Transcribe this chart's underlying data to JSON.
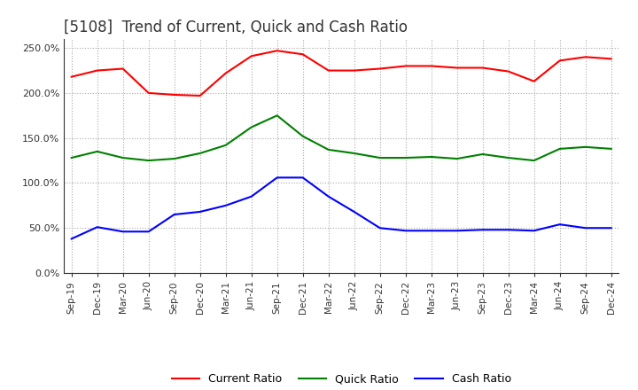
{
  "title": "[5108]  Trend of Current, Quick and Cash Ratio",
  "x_labels": [
    "Sep-19",
    "Dec-19",
    "Mar-20",
    "Jun-20",
    "Sep-20",
    "Dec-20",
    "Mar-21",
    "Jun-21",
    "Sep-21",
    "Dec-21",
    "Mar-22",
    "Jun-22",
    "Sep-22",
    "Dec-22",
    "Mar-23",
    "Jun-23",
    "Sep-23",
    "Dec-23",
    "Mar-24",
    "Jun-24",
    "Sep-24",
    "Dec-24"
  ],
  "current_ratio": [
    2.18,
    2.25,
    2.27,
    2.0,
    1.98,
    1.97,
    2.22,
    2.41,
    2.47,
    2.43,
    2.25,
    2.25,
    2.27,
    2.3,
    2.3,
    2.28,
    2.28,
    2.24,
    2.13,
    2.36,
    2.4,
    2.38
  ],
  "quick_ratio": [
    1.28,
    1.35,
    1.28,
    1.25,
    1.27,
    1.33,
    1.42,
    1.62,
    1.75,
    1.52,
    1.37,
    1.33,
    1.28,
    1.28,
    1.29,
    1.27,
    1.32,
    1.28,
    1.25,
    1.38,
    1.4,
    1.38
  ],
  "cash_ratio": [
    0.38,
    0.51,
    0.46,
    0.46,
    0.65,
    0.68,
    0.75,
    0.85,
    1.06,
    1.06,
    0.85,
    0.68,
    0.5,
    0.47,
    0.47,
    0.47,
    0.48,
    0.48,
    0.47,
    0.54,
    0.5,
    0.5
  ],
  "current_color": "#ff0000",
  "quick_color": "#008000",
  "cash_color": "#0000ff",
  "background_color": "#ffffff",
  "grid_color": "#aaaaaa",
  "title_fontsize": 12,
  "legend_labels": [
    "Current Ratio",
    "Quick Ratio",
    "Cash Ratio"
  ]
}
